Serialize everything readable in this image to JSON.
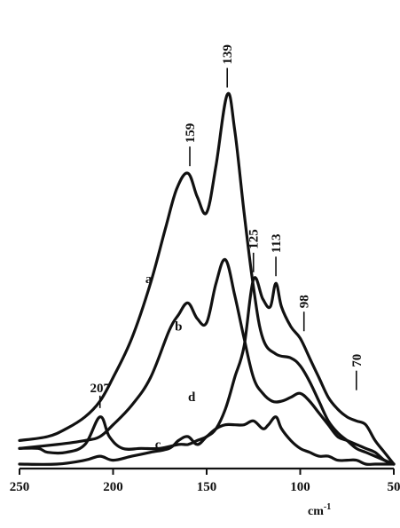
{
  "chart_data": {
    "type": "line",
    "title": "",
    "xlabel": "cm",
    "xlabel_sup": "-1",
    "ylabel": "",
    "xlim": [
      250,
      50
    ],
    "x_reversed": true,
    "ylim": [
      0,
      1
    ],
    "grid": false,
    "legend": "none",
    "x_ticks": [
      250,
      200,
      150,
      100,
      50
    ],
    "x_tick_labels": [
      "250",
      "200",
      "150",
      "100",
      "50"
    ],
    "series": [
      {
        "name": "a",
        "x": [
          250,
          235,
          225,
          215,
          207,
          200,
          190,
          180,
          172,
          166,
          160,
          155,
          150,
          145,
          139,
          135,
          130,
          125,
          120,
          113,
          105,
          100,
          95,
          90,
          85,
          80,
          75,
          70,
          65,
          60,
          55,
          50
        ],
        "y": [
          0.06,
          0.07,
          0.09,
          0.12,
          0.16,
          0.22,
          0.32,
          0.46,
          0.6,
          0.7,
          0.74,
          0.68,
          0.64,
          0.76,
          0.94,
          0.85,
          0.64,
          0.45,
          0.32,
          0.28,
          0.27,
          0.25,
          0.21,
          0.16,
          0.11,
          0.08,
          0.06,
          0.04,
          0.03,
          0.02,
          0.01,
          0.0
        ]
      },
      {
        "name": "b",
        "x": [
          250,
          230,
          215,
          207,
          200,
          190,
          180,
          170,
          165,
          160,
          155,
          150,
          145,
          140,
          135,
          130,
          125,
          120,
          115,
          110,
          105,
          100,
          95,
          90,
          85,
          80,
          75,
          70,
          65,
          60,
          55,
          50
        ],
        "y": [
          0.04,
          0.05,
          0.06,
          0.07,
          0.1,
          0.15,
          0.22,
          0.34,
          0.38,
          0.41,
          0.37,
          0.36,
          0.46,
          0.52,
          0.43,
          0.32,
          0.22,
          0.18,
          0.16,
          0.16,
          0.17,
          0.18,
          0.16,
          0.13,
          0.1,
          0.07,
          0.06,
          0.05,
          0.04,
          0.03,
          0.01,
          0.0
        ]
      },
      {
        "name": "c",
        "x": [
          250,
          230,
          215,
          207,
          200,
          190,
          180,
          170,
          165,
          160,
          155,
          150,
          145,
          140,
          135,
          130,
          125,
          120,
          117,
          113,
          110,
          105,
          100,
          95,
          90,
          85,
          80,
          75,
          70,
          65,
          60,
          55,
          50
        ],
        "y": [
          0.0,
          0.0,
          0.01,
          0.02,
          0.01,
          0.02,
          0.03,
          0.04,
          0.06,
          0.07,
          0.05,
          0.07,
          0.09,
          0.1,
          0.1,
          0.1,
          0.11,
          0.09,
          0.1,
          0.12,
          0.09,
          0.06,
          0.04,
          0.03,
          0.02,
          0.02,
          0.01,
          0.01,
          0.01,
          0.0,
          0.0,
          0.0,
          0.0
        ]
      },
      {
        "name": "d",
        "x": [
          250,
          240,
          235,
          225,
          215,
          207,
          202,
          195,
          185,
          175,
          165,
          160,
          155,
          150,
          145,
          140,
          135,
          130,
          125,
          120,
          116,
          113,
          110,
          105,
          100,
          95,
          90,
          85,
          80,
          75,
          70,
          65,
          60,
          55,
          50
        ],
        "y": [
          0.04,
          0.04,
          0.03,
          0.03,
          0.05,
          0.12,
          0.07,
          0.04,
          0.04,
          0.04,
          0.05,
          0.05,
          0.06,
          0.07,
          0.09,
          0.14,
          0.22,
          0.3,
          0.47,
          0.42,
          0.4,
          0.46,
          0.4,
          0.35,
          0.32,
          0.27,
          0.22,
          0.17,
          0.14,
          0.12,
          0.11,
          0.1,
          0.06,
          0.03,
          0.0
        ]
      }
    ],
    "curve_labels": [
      {
        "text": "a",
        "x": 181,
        "y": 0.46
      },
      {
        "text": "b",
        "x": 165,
        "y": 0.34
      },
      {
        "text": "c",
        "x": 176,
        "y": 0.04
      },
      {
        "text": "d",
        "x": 158,
        "y": 0.16
      }
    ],
    "annotations": [
      {
        "text": "207",
        "x": 207,
        "y": 0.12
      },
      {
        "text": "159",
        "x": 159,
        "y": 0.74
      },
      {
        "text": "139",
        "x": 139,
        "y": 0.94
      },
      {
        "text": "125",
        "x": 125,
        "y": 0.47
      },
      {
        "text": "113",
        "x": 113,
        "y": 0.46
      },
      {
        "text": "98",
        "x": 98,
        "y": 0.32
      },
      {
        "text": "70",
        "x": 70,
        "y": 0.17
      }
    ]
  }
}
